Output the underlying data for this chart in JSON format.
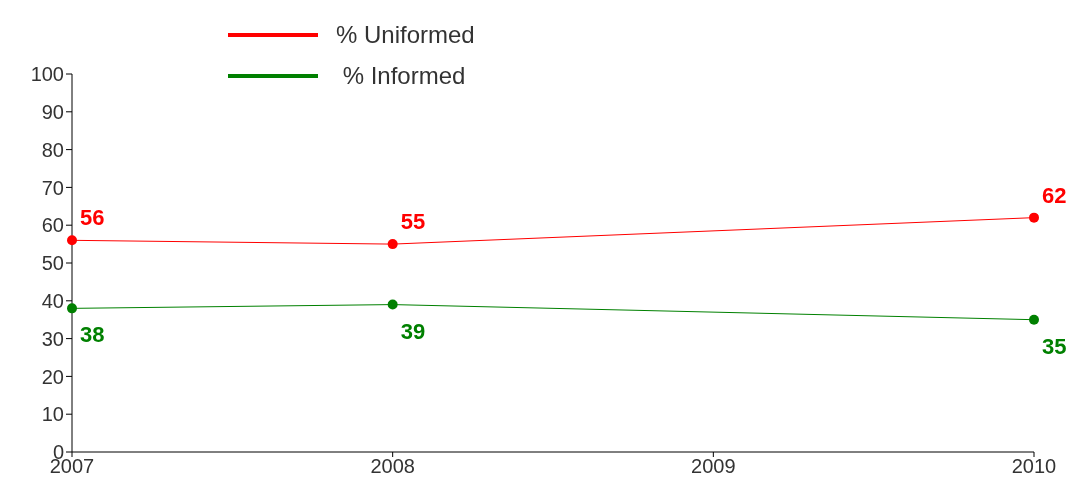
{
  "chart_data": {
    "type": "line",
    "x": [
      2007,
      2008,
      2010
    ],
    "xlim": [
      2007,
      2010
    ],
    "xticks": [
      2007,
      2008,
      2009,
      2010
    ],
    "ylim": [
      0,
      100
    ],
    "yticks": [
      0,
      10,
      20,
      30,
      40,
      50,
      60,
      70,
      80,
      90,
      100
    ],
    "series": [
      {
        "name": "% Uniformed",
        "color": "#ff0000",
        "values": [
          56,
          55,
          62
        ]
      },
      {
        "name": " % Informed",
        "color": "#008000",
        "values": [
          38,
          39,
          35
        ]
      }
    ],
    "grid": false,
    "legend": "top",
    "marker": "circle",
    "line_style": "solid",
    "data_labels": true
  }
}
